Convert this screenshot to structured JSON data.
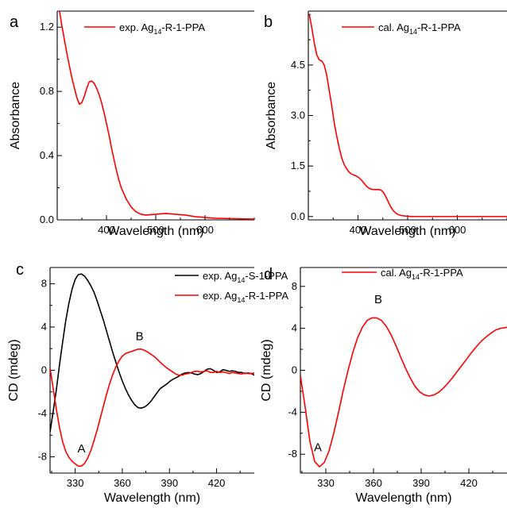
{
  "colors": {
    "red": "#ff0000",
    "black": "#000000"
  },
  "chart_data": [
    {
      "id": "a",
      "type": "line",
      "panel_label": "a",
      "xlabel": "Wavelength (nm)",
      "ylabel": "Absorbance",
      "xlim": [
        300,
        700
      ],
      "ylim": [
        0,
        1.3
      ],
      "xticks": [
        400,
        500,
        600
      ],
      "xtick_labels": [
        "400",
        "500",
        "600"
      ],
      "yticks": [
        0,
        0.4,
        0.8,
        1.2
      ],
      "ytick_labels": [
        "0.0",
        "0.4",
        "0.8",
        "1.2"
      ],
      "legend_position": "top-right",
      "series": [
        {
          "name": "exp. Ag14-R-1-PPA",
          "name_parts": {
            "before": "exp. Ag",
            "sub": "14",
            "after": "-R-1-PPA"
          },
          "color": "#ff0000",
          "x": [
            303,
            310,
            320,
            330,
            340,
            345,
            350,
            355,
            360,
            365,
            370,
            375,
            380,
            385,
            390,
            395,
            400,
            405,
            410,
            415,
            420,
            425,
            430,
            440,
            450,
            460,
            470,
            480,
            500,
            520,
            540,
            560,
            580,
            600,
            620,
            650,
            680,
            700
          ],
          "y": [
            1.33,
            1.2,
            1.03,
            0.88,
            0.76,
            0.72,
            0.73,
            0.77,
            0.82,
            0.86,
            0.865,
            0.85,
            0.82,
            0.78,
            0.73,
            0.67,
            0.6,
            0.53,
            0.45,
            0.38,
            0.31,
            0.25,
            0.2,
            0.13,
            0.08,
            0.05,
            0.035,
            0.03,
            0.035,
            0.04,
            0.035,
            0.03,
            0.02,
            0.015,
            0.01,
            0.008,
            0.006,
            0.005
          ]
        }
      ]
    },
    {
      "id": "b",
      "type": "line",
      "panel_label": "b",
      "xlabel": "Wavelength (nm)",
      "ylabel": "Absorbance",
      "xlim": [
        300,
        700
      ],
      "ylim": [
        -0.1,
        6.1
      ],
      "xticks": [
        400,
        500,
        600
      ],
      "xtick_labels": [
        "400",
        "500",
        "600"
      ],
      "yticks": [
        0,
        1.5,
        3.0,
        4.5
      ],
      "ytick_labels": [
        "0.0",
        "1.5",
        "3.0",
        "4.5"
      ],
      "legend_position": "top-right",
      "series": [
        {
          "name": "cal. Ag14-R-1-PPA",
          "name_parts": {
            "before": "cal. Ag",
            "sub": "14",
            "after": "-R-1-PPA"
          },
          "color": "#ff0000",
          "x": [
            302,
            307,
            312,
            317,
            322,
            327,
            332,
            337,
            342,
            347,
            352,
            357,
            362,
            367,
            372,
            377,
            382,
            387,
            392,
            397,
            402,
            407,
            412,
            417,
            422,
            427,
            432,
            437,
            442,
            447,
            452,
            457,
            462,
            467,
            472,
            477,
            482,
            487,
            492,
            497,
            502,
            507,
            512,
            520,
            530,
            550,
            600,
            650,
            700
          ],
          "y": [
            6.0,
            5.6,
            5.15,
            4.8,
            4.65,
            4.62,
            4.5,
            4.2,
            3.75,
            3.3,
            2.8,
            2.4,
            2.05,
            1.75,
            1.55,
            1.42,
            1.32,
            1.26,
            1.23,
            1.2,
            1.15,
            1.08,
            0.99,
            0.9,
            0.84,
            0.81,
            0.8,
            0.8,
            0.8,
            0.78,
            0.7,
            0.56,
            0.4,
            0.26,
            0.16,
            0.09,
            0.05,
            0.03,
            0.02,
            0.01,
            0.005,
            0.002,
            0,
            0,
            0,
            0,
            0,
            0,
            0
          ]
        }
      ]
    },
    {
      "id": "c",
      "type": "line",
      "panel_label": "c",
      "xlabel": "Wavelength (nm)",
      "ylabel": "CD (mdeg)",
      "xlim": [
        314,
        444
      ],
      "ylim": [
        -9.5,
        9.5
      ],
      "xticks": [
        330,
        360,
        390,
        420
      ],
      "xtick_labels": [
        "330",
        "360",
        "390",
        "420"
      ],
      "yticks": [
        -8,
        -4,
        0,
        4,
        8
      ],
      "ytick_labels": [
        "-8",
        "-4",
        "0",
        "4",
        "8"
      ],
      "legend_position": "top-right",
      "annotations": [
        {
          "text": "A",
          "x": 334,
          "y": -7.6
        },
        {
          "text": "B",
          "x": 371,
          "y": 2.8
        }
      ],
      "series": [
        {
          "name": "exp. Ag14-S-1-PPA",
          "name_parts": {
            "before": "exp. Ag",
            "sub": "14",
            "after": "-S-1-PPA"
          },
          "color": "#000000",
          "x": [
            314,
            316,
            318,
            320,
            322,
            324,
            326,
            328,
            330,
            332,
            334,
            336,
            338,
            340,
            342,
            344,
            346,
            348,
            350,
            352,
            354,
            356,
            358,
            360,
            362,
            364,
            366,
            368,
            370,
            372,
            374,
            376,
            378,
            380,
            382,
            384,
            386,
            388,
            390,
            392,
            394,
            396,
            398,
            400,
            402,
            404,
            406,
            408,
            410,
            412,
            414,
            416,
            418,
            420,
            422,
            424,
            426,
            428,
            430,
            432,
            434,
            436,
            438,
            440,
            442,
            444
          ],
          "y": [
            -5.7,
            -3.8,
            -1.8,
            0.5,
            2.6,
            4.6,
            6.2,
            7.5,
            8.4,
            8.85,
            8.9,
            8.7,
            8.3,
            7.8,
            7.2,
            6.4,
            5.5,
            4.6,
            3.6,
            2.6,
            1.6,
            0.7,
            -0.2,
            -1.0,
            -1.7,
            -2.3,
            -2.8,
            -3.2,
            -3.45,
            -3.5,
            -3.4,
            -3.2,
            -2.9,
            -2.5,
            -2.1,
            -1.7,
            -1.5,
            -1.3,
            -1.05,
            -0.85,
            -0.7,
            -0.55,
            -0.35,
            -0.25,
            -0.2,
            -0.25,
            -0.35,
            -0.4,
            -0.3,
            -0.1,
            0.1,
            0.15,
            0.0,
            -0.2,
            -0.15,
            0.05,
            0.0,
            -0.1,
            -0.05,
            -0.1,
            -0.2,
            -0.2,
            -0.3,
            -0.25,
            -0.3,
            -0.45
          ]
        },
        {
          "name": "exp. Ag14-R-1-PPA",
          "name_parts": {
            "before": "exp. Ag",
            "sub": "14",
            "after": "-R-1-PPA"
          },
          "color": "#ff0000",
          "x": [
            314,
            316,
            318,
            320,
            322,
            324,
            326,
            328,
            330,
            332,
            334,
            336,
            338,
            340,
            342,
            344,
            346,
            348,
            350,
            352,
            354,
            356,
            358,
            360,
            362,
            364,
            366,
            368,
            370,
            372,
            374,
            376,
            378,
            380,
            382,
            384,
            386,
            388,
            390,
            392,
            394,
            396,
            398,
            400,
            402,
            404,
            406,
            408,
            410,
            412,
            414,
            416,
            418,
            420,
            422,
            424,
            426,
            428,
            430,
            432,
            434,
            436,
            438,
            440,
            442,
            444
          ],
          "y": [
            0.2,
            -1.7,
            -3.6,
            -5.3,
            -6.6,
            -7.5,
            -8.05,
            -8.4,
            -8.65,
            -8.85,
            -8.85,
            -8.6,
            -8.1,
            -7.4,
            -6.5,
            -5.5,
            -4.4,
            -3.3,
            -2.2,
            -1.2,
            -0.35,
            0.35,
            0.9,
            1.3,
            1.55,
            1.65,
            1.75,
            1.85,
            1.95,
            1.95,
            1.85,
            1.7,
            1.5,
            1.3,
            1.05,
            0.75,
            0.5,
            0.25,
            0.05,
            -0.15,
            -0.35,
            -0.45,
            -0.45,
            -0.35,
            -0.3,
            -0.2,
            -0.1,
            -0.1,
            -0.15,
            -0.1,
            -0.05,
            -0.2,
            -0.2,
            -0.1,
            -0.2,
            -0.15,
            -0.2,
            -0.3,
            -0.2,
            -0.25,
            -0.3,
            -0.35,
            -0.25,
            -0.3,
            -0.3,
            -0.25
          ]
        }
      ]
    },
    {
      "id": "d",
      "type": "line",
      "panel_label": "d",
      "xlabel": "Wavelength (nm)",
      "ylabel": "CD (mdeg)",
      "xlim": [
        314,
        444
      ],
      "ylim": [
        -9.8,
        9.8
      ],
      "xticks": [
        330,
        360,
        390,
        420
      ],
      "xtick_labels": [
        "330",
        "360",
        "390",
        "420"
      ],
      "yticks": [
        -8,
        -4,
        0,
        4,
        8
      ],
      "ytick_labels": [
        "-8",
        "-4",
        "0",
        "4",
        "8"
      ],
      "legend_position": "top-right",
      "annotations": [
        {
          "text": "A",
          "x": 325,
          "y": -7.7
        },
        {
          "text": "B",
          "x": 363,
          "y": 6.4
        }
      ],
      "series": [
        {
          "name": "cal. Ag14-R-1-PPA",
          "name_parts": {
            "before": "cal. Ag",
            "sub": "14",
            "after": "-R-1-PPA"
          },
          "color": "#ff0000",
          "x": [
            314,
            317,
            320,
            323,
            326,
            329,
            332,
            335,
            338,
            341,
            344,
            347,
            350,
            353,
            356,
            359,
            362,
            365,
            368,
            371,
            374,
            377,
            380,
            383,
            386,
            389,
            392,
            395,
            398,
            401,
            404,
            407,
            410,
            413,
            416,
            419,
            422,
            425,
            428,
            431,
            434,
            437,
            440,
            444
          ],
          "y": [
            -0.5,
            -3.5,
            -6.8,
            -8.7,
            -9.2,
            -8.8,
            -7.7,
            -6.0,
            -4.0,
            -1.9,
            0.0,
            1.7,
            3.1,
            4.1,
            4.75,
            5.0,
            5.0,
            4.75,
            4.2,
            3.4,
            2.4,
            1.3,
            0.25,
            -0.7,
            -1.5,
            -2.05,
            -2.35,
            -2.45,
            -2.35,
            -2.1,
            -1.7,
            -1.2,
            -0.65,
            -0.05,
            0.55,
            1.15,
            1.75,
            2.3,
            2.8,
            3.2,
            3.55,
            3.85,
            4.0,
            4.1
          ]
        }
      ]
    }
  ]
}
